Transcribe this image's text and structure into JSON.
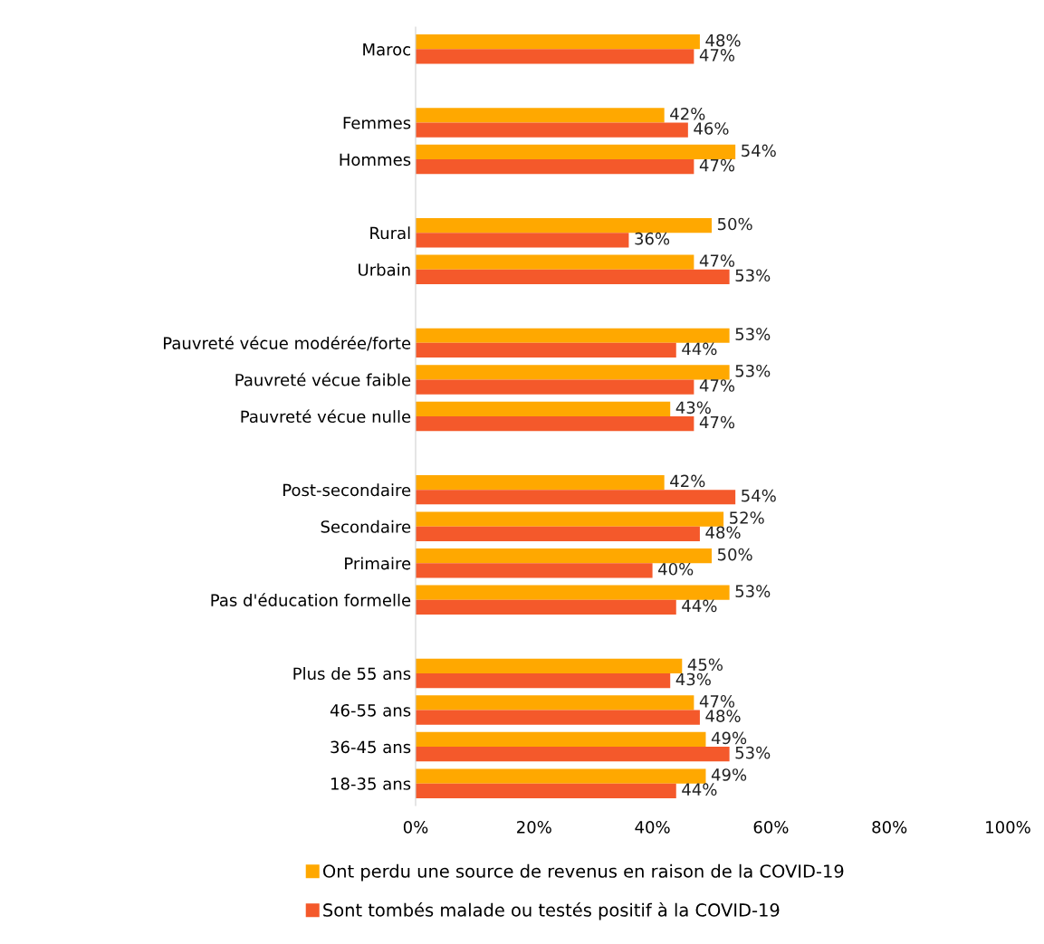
{
  "chart_data": {
    "type": "bar",
    "orientation": "horizontal",
    "categories": [
      "Maroc",
      null,
      "Femmes",
      "Hommes",
      null,
      "Rural",
      "Urbain",
      null,
      "Pauvreté vécue modérée/forte",
      "Pauvreté vécue faible",
      "Pauvreté vécue nulle",
      null,
      "Post-secondaire",
      "Secondaire",
      "Primaire",
      "Pas d'éducation formelle",
      null,
      "Plus de 55 ans",
      "46-55 ans",
      "36-45 ans",
      "18-35 ans"
    ],
    "series": [
      {
        "name": "Ont perdu une source de revenus en raison de la COVID-19",
        "color": "#ffa800",
        "values": [
          48,
          null,
          42,
          54,
          null,
          50,
          47,
          null,
          53,
          53,
          43,
          null,
          42,
          52,
          50,
          53,
          null,
          45,
          47,
          49,
          49
        ],
        "value_labels": [
          "48%",
          null,
          "42%",
          "54%",
          null,
          "50%",
          "47%",
          null,
          "53%",
          "53%",
          "43%",
          null,
          "42%",
          "52%",
          "50%",
          "53%",
          null,
          "45%",
          "47%",
          "49%",
          "49%"
        ]
      },
      {
        "name": "Sont tombés malade ou testés positif à la COVID-19",
        "color": "#f4592b",
        "values": [
          47,
          null,
          46,
          47,
          null,
          36,
          53,
          null,
          44,
          47,
          47,
          null,
          54,
          48,
          40,
          44,
          null,
          43,
          48,
          53,
          44
        ],
        "value_labels": [
          "47%",
          null,
          "46%",
          "47%",
          null,
          "36%",
          "53%",
          null,
          "44%",
          "47%",
          "47%",
          null,
          "54%",
          "48%",
          "40%",
          "44%",
          null,
          "43%",
          "48%",
          "53%",
          "44%"
        ]
      }
    ],
    "xlim": [
      0,
      100
    ],
    "xticks": [
      {
        "value": 0,
        "label": "0%"
      },
      {
        "value": 20,
        "label": "20%"
      },
      {
        "value": 40,
        "label": "40%"
      },
      {
        "value": 60,
        "label": "60%"
      },
      {
        "value": 80,
        "label": "80%"
      },
      {
        "value": 100,
        "label": "100%"
      }
    ],
    "grid": false,
    "legend": "bottom"
  }
}
